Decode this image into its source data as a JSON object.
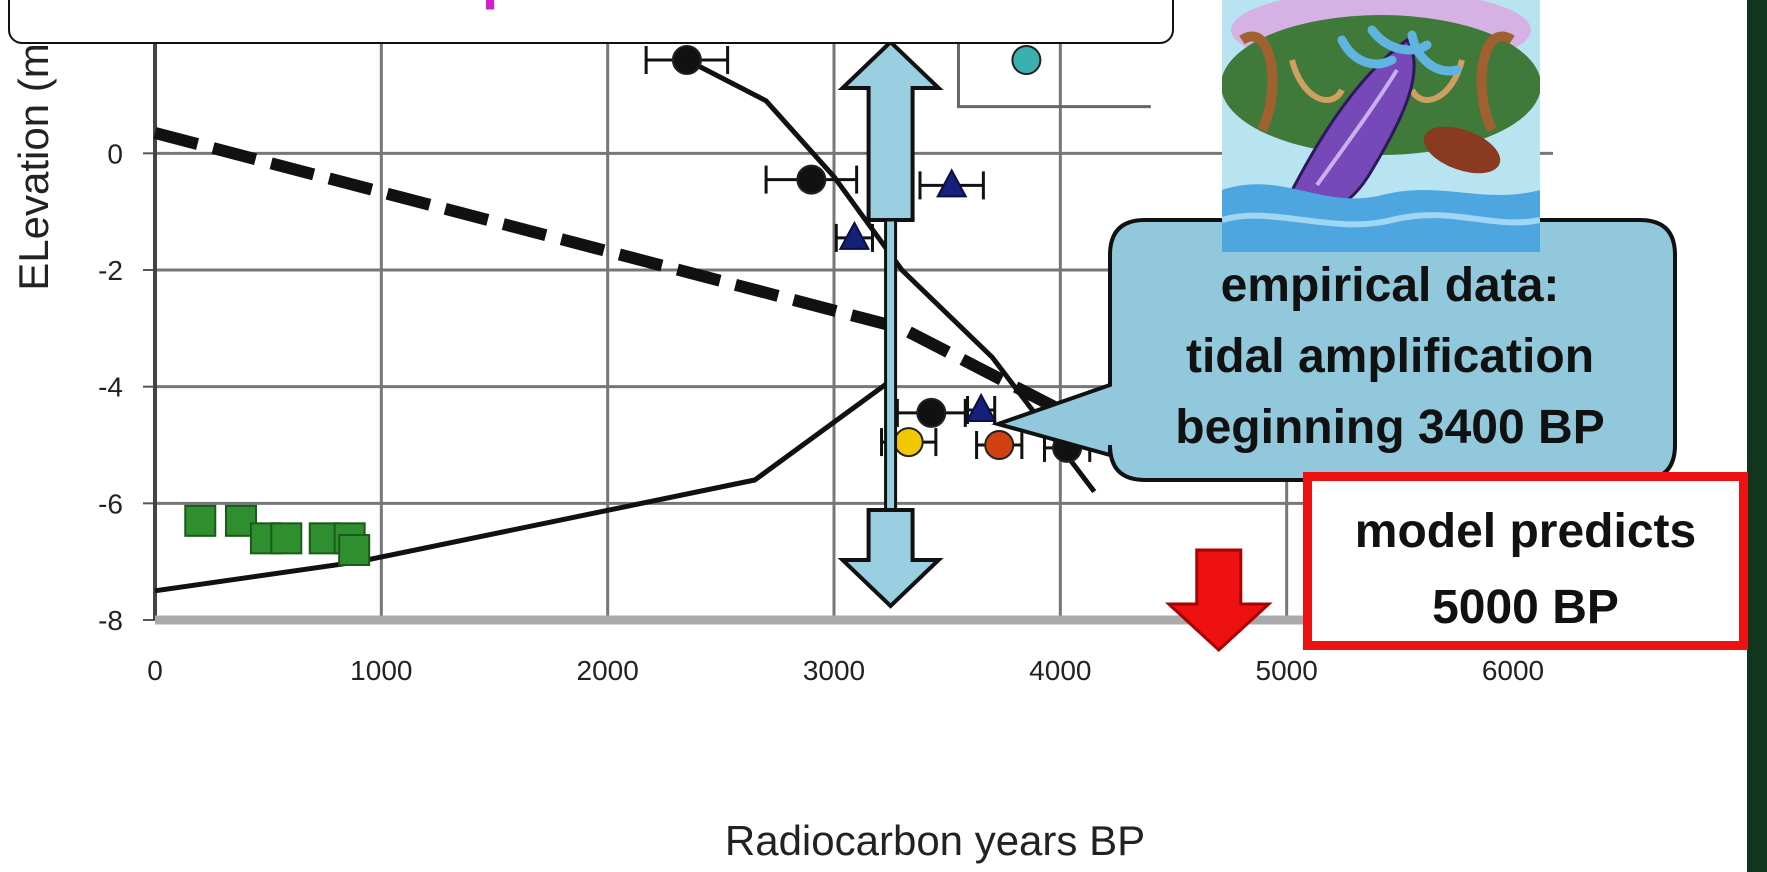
{
  "chart_data": {
    "type": "scatter",
    "xlabel": "Radiocarbon years BP",
    "ylabel": "ELevation (m)",
    "xlim": [
      0,
      6000
    ],
    "ylim": [
      -8,
      2.2
    ],
    "xticks": [
      "0",
      "1000",
      "2000",
      "3000",
      "4000",
      "5000",
      "6000"
    ],
    "yticks": [
      "-8",
      "-6",
      "-4",
      "-2",
      "0"
    ],
    "grid": true,
    "series": [
      {
        "kind": "points",
        "marker": "square",
        "color": "#2f8f2f",
        "points": [
          [
            200,
            -6.3
          ],
          [
            380,
            -6.3
          ],
          [
            490,
            -6.6
          ],
          [
            580,
            -6.6
          ],
          [
            750,
            -6.6
          ],
          [
            860,
            -6.6
          ],
          [
            880,
            -6.8
          ]
        ]
      },
      {
        "kind": "points",
        "marker": "circle",
        "color": "#111111",
        "points": [
          {
            "x": 2350,
            "y": 1.6,
            "xerr": 180
          },
          {
            "x": 2900,
            "y": -0.45,
            "xerr": 200
          },
          {
            "x": 3430,
            "y": -4.45,
            "xerr": 150
          },
          {
            "x": 4030,
            "y": -5.05,
            "xerr": 100
          }
        ]
      },
      {
        "kind": "points",
        "marker": "triangle",
        "color": "#14207a",
        "points": [
          {
            "x": 3520,
            "y": -0.55,
            "xerr": 140
          },
          {
            "x": 3090,
            "y": -1.45,
            "xerr": 80
          },
          {
            "x": 3650,
            "y": -4.4,
            "xerr": 60
          }
        ]
      },
      {
        "kind": "points",
        "marker": "circle",
        "color": "#f2c800",
        "points": [
          {
            "x": 3330,
            "y": -4.95,
            "xerr": 120
          }
        ]
      },
      {
        "kind": "points",
        "marker": "circle",
        "color": "#d04010",
        "points": [
          {
            "x": 3730,
            "y": -5.0,
            "xerr": 100
          }
        ]
      },
      {
        "kind": "points",
        "marker": "circle",
        "color": "#3ab0b0",
        "points": [
          {
            "x": 3850,
            "y": 1.6
          }
        ]
      },
      {
        "kind": "line",
        "style": "solid",
        "points": [
          [
            2350,
            1.6
          ],
          [
            2700,
            0.9
          ],
          [
            3000,
            -0.4
          ],
          [
            3300,
            -2.0
          ],
          [
            3700,
            -3.5
          ],
          [
            4150,
            -5.8
          ]
        ]
      },
      {
        "kind": "line",
        "style": "dashed",
        "points": [
          [
            0,
            0.35
          ],
          [
            3300,
            -3.0
          ],
          [
            4500,
            -5.4
          ]
        ]
      },
      {
        "kind": "line",
        "style": "solid",
        "points": [
          [
            0,
            -7.5
          ],
          [
            900,
            -7.0
          ],
          [
            2650,
            -5.6
          ],
          [
            3250,
            -3.9
          ]
        ]
      },
      {
        "kind": "line",
        "style": "thin",
        "points": [
          [
            3550,
            2.2
          ],
          [
            3550,
            0.8
          ],
          [
            4400,
            0.8
          ]
        ]
      }
    ]
  },
  "annotations": {
    "title_text": "Observational patterns recorded in",
    "empirical_callout": [
      "empirical data:",
      "tidal amplification",
      "beginning 3400 BP"
    ],
    "model_callout": [
      "model predicts",
      "5000 BP"
    ],
    "double_arrow_x": 3250,
    "red_arrow_x": 4700
  },
  "colors": {
    "title": "#d020c8",
    "callout_fill": "#92c8dc",
    "arrow_fill": "#99cfe0",
    "model_border": "#ee1111",
    "red_arrow": "#ee1111",
    "right_border": "#12351e"
  }
}
